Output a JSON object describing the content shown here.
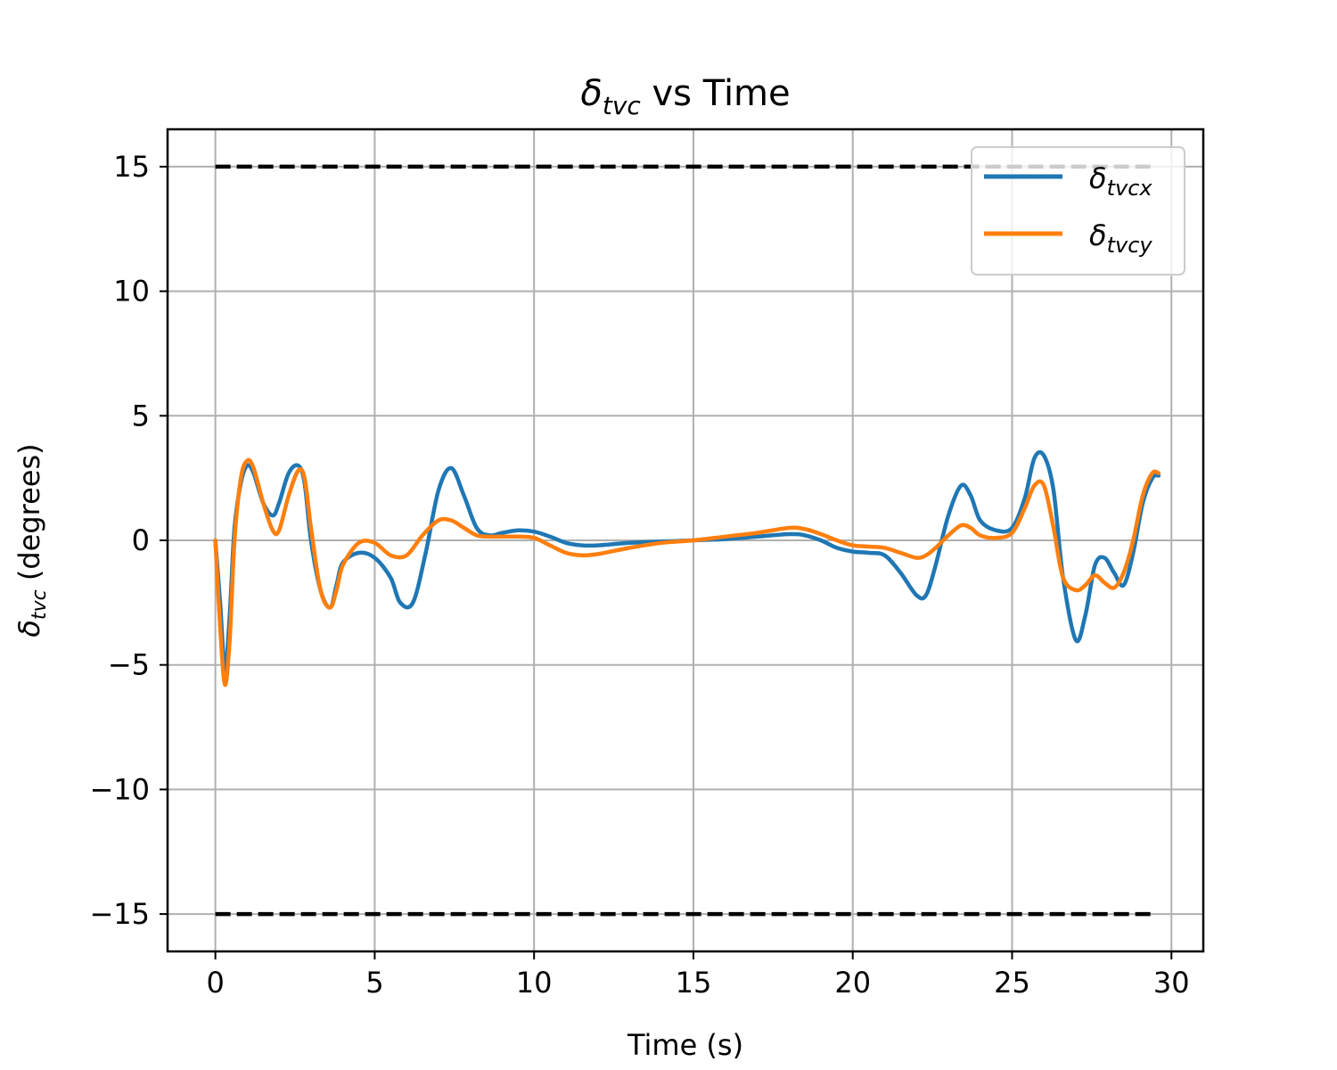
{
  "chart_data": {
    "type": "line",
    "title": {
      "symbol": "δ",
      "subscript": "tvc",
      "suffix": " vs Time"
    },
    "xlabel": "Time (s)",
    "ylabel": {
      "symbol": "δ",
      "subscript": "tvc",
      "suffix": " (degrees)"
    },
    "xlim": [
      -1.5,
      31
    ],
    "ylim": [
      -16.5,
      16.5
    ],
    "xticks": [
      0,
      5,
      10,
      15,
      20,
      25,
      30
    ],
    "xtick_labels": [
      "0",
      "5",
      "10",
      "15",
      "20",
      "25",
      "30"
    ],
    "yticks": [
      -15,
      -10,
      -5,
      0,
      5,
      10,
      15
    ],
    "ytick_labels": [
      "−15",
      "−10",
      "−5",
      "0",
      "5",
      "10",
      "15"
    ],
    "grid": true,
    "legend_position": "top-right",
    "limits": [
      {
        "y": 15,
        "x": [
          0,
          29.5
        ],
        "color": "#000000",
        "style": "dashed"
      },
      {
        "y": -15,
        "x": [
          0,
          29.5
        ],
        "color": "#000000",
        "style": "dashed"
      }
    ],
    "series": [
      {
        "name": {
          "symbol": "δ",
          "subscript": "tvcx"
        },
        "color": "#1f77b4",
        "x": [
          0,
          0.15,
          0.3,
          0.45,
          0.6,
          0.8,
          1.0,
          1.2,
          1.5,
          1.8,
          2.0,
          2.3,
          2.6,
          2.8,
          3.0,
          3.3,
          3.6,
          3.8,
          4.0,
          4.5,
          5.0,
          5.5,
          5.8,
          6.2,
          6.6,
          7.0,
          7.4,
          7.8,
          8.2,
          8.6,
          9.0,
          9.5,
          10.0,
          10.5,
          11.0,
          11.5,
          12.0,
          13.0,
          14.0,
          15.0,
          16.0,
          17.0,
          18.0,
          18.5,
          19.0,
          19.5,
          20.0,
          20.5,
          21.0,
          21.5,
          22.0,
          22.3,
          22.6,
          23.0,
          23.4,
          23.7,
          24.0,
          24.5,
          25.0,
          25.4,
          25.7,
          26.0,
          26.3,
          26.6,
          27.0,
          27.3,
          27.6,
          27.9,
          28.2,
          28.5,
          28.8,
          29.1,
          29.4,
          29.6
        ],
        "values": [
          0,
          -2.5,
          -5.2,
          -3.0,
          0.5,
          2.3,
          3.0,
          2.7,
          1.5,
          1.0,
          1.5,
          2.7,
          3.0,
          2.3,
          0.0,
          -2.0,
          -2.7,
          -1.8,
          -0.9,
          -0.5,
          -0.7,
          -1.5,
          -2.5,
          -2.5,
          -0.5,
          2.0,
          2.9,
          1.8,
          0.5,
          0.2,
          0.3,
          0.4,
          0.35,
          0.15,
          -0.1,
          -0.2,
          -0.2,
          -0.1,
          -0.05,
          0.0,
          0.05,
          0.15,
          0.25,
          0.2,
          0.0,
          -0.3,
          -0.45,
          -0.5,
          -0.6,
          -1.3,
          -2.2,
          -2.2,
          -1.0,
          1.0,
          2.2,
          1.8,
          0.8,
          0.4,
          0.5,
          1.7,
          3.3,
          3.4,
          2.0,
          -1.5,
          -4.0,
          -3.0,
          -1.0,
          -0.7,
          -1.3,
          -1.8,
          -0.5,
          1.5,
          2.5,
          2.6
        ]
      },
      {
        "name": {
          "symbol": "δ",
          "subscript": "tvcy"
        },
        "color": "#ff7f0e",
        "x": [
          0,
          0.15,
          0.3,
          0.45,
          0.6,
          0.8,
          1.0,
          1.2,
          1.5,
          1.8,
          2.0,
          2.3,
          2.6,
          2.8,
          3.0,
          3.3,
          3.6,
          3.8,
          4.0,
          4.5,
          5.0,
          5.5,
          6.0,
          6.5,
          7.0,
          7.4,
          7.8,
          8.2,
          8.6,
          9.0,
          9.5,
          10.0,
          10.5,
          11.0,
          11.5,
          12.0,
          13.0,
          14.0,
          15.0,
          16.0,
          17.0,
          18.0,
          18.5,
          19.0,
          19.5,
          20.0,
          20.5,
          21.0,
          21.5,
          22.0,
          22.3,
          22.6,
          23.0,
          23.4,
          23.7,
          24.0,
          24.5,
          25.0,
          25.4,
          25.7,
          26.0,
          26.3,
          26.6,
          27.0,
          27.3,
          27.6,
          27.9,
          28.2,
          28.5,
          28.8,
          29.1,
          29.4,
          29.6
        ],
        "values": [
          0,
          -3.5,
          -5.8,
          -4.0,
          0.0,
          2.5,
          3.2,
          2.9,
          1.5,
          0.4,
          0.4,
          1.8,
          2.8,
          2.5,
          0.5,
          -2.0,
          -2.7,
          -2.0,
          -1.0,
          -0.1,
          -0.1,
          -0.6,
          -0.6,
          0.2,
          0.8,
          0.8,
          0.5,
          0.2,
          0.15,
          0.15,
          0.15,
          0.1,
          -0.2,
          -0.5,
          -0.6,
          -0.55,
          -0.3,
          -0.1,
          0.0,
          0.15,
          0.3,
          0.5,
          0.45,
          0.25,
          0.0,
          -0.2,
          -0.25,
          -0.3,
          -0.5,
          -0.7,
          -0.6,
          -0.3,
          0.2,
          0.6,
          0.5,
          0.2,
          0.1,
          0.3,
          1.3,
          2.2,
          2.2,
          0.5,
          -1.5,
          -2.0,
          -1.8,
          -1.4,
          -1.7,
          -1.9,
          -1.3,
          0.0,
          1.8,
          2.7,
          2.7
        ]
      }
    ]
  }
}
